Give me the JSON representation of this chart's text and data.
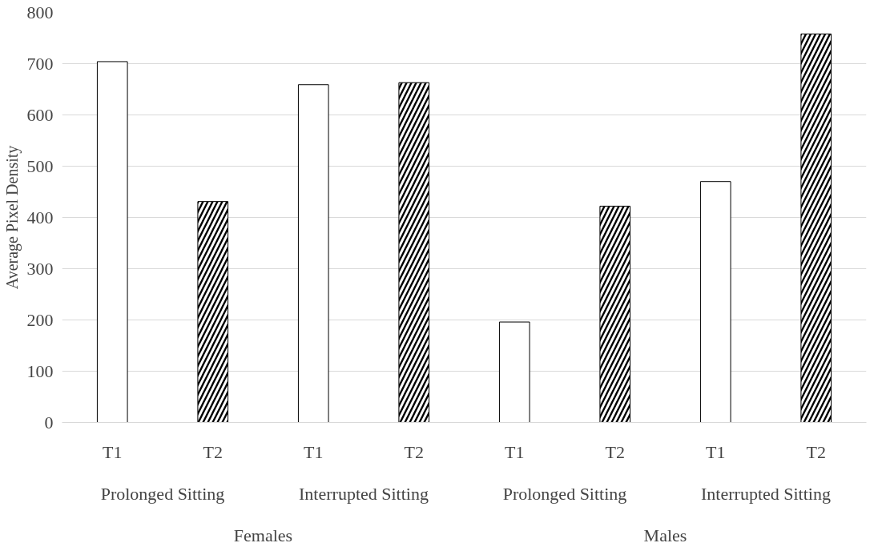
{
  "chart_data": {
    "type": "bar",
    "ylabel": "Average Pixel Density",
    "categories": [
      "T1",
      "T2",
      "T1",
      "T2",
      "T1",
      "T2",
      "T1",
      "T2"
    ],
    "values": [
      704,
      431,
      659,
      663,
      196,
      422,
      470,
      758
    ],
    "colors": [
      "#ffffff",
      "#000000",
      "#ffffff",
      "#000000",
      "#ffffff",
      "#000000",
      "#ffffff",
      "#000000"
    ],
    "annotations": [
      "Prolonged Sitting",
      "Interrupted Sitting",
      "Prolonged Sitting",
      "Interrupted Sitting",
      "Females",
      "Males"
    ],
    "ylim": [
      0,
      800
    ],
    "yticks": [
      0,
      100,
      200,
      300,
      400,
      500,
      600,
      700,
      800
    ],
    "grid": "y"
  }
}
